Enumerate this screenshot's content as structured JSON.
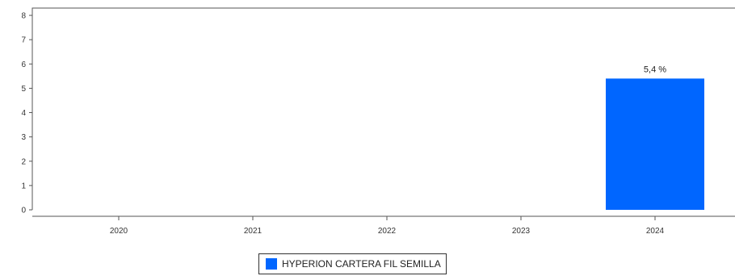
{
  "chart_data": {
    "type": "bar",
    "categories": [
      "2020",
      "2021",
      "2022",
      "2023",
      "2024"
    ],
    "series": [
      {
        "name": "HYPERION CARTERA FIL SEMILLA",
        "values": [
          null,
          null,
          null,
          null,
          5.4
        ],
        "data_labels": [
          "",
          "",
          "",
          "",
          "5,4 %"
        ],
        "color": "#0066ff"
      }
    ],
    "yticks": [
      "0",
      "1",
      "2",
      "3",
      "4",
      "5",
      "6",
      "7",
      "8"
    ],
    "ylim": [
      0,
      8.3
    ],
    "grid": false,
    "legend_position": "bottom-center"
  }
}
